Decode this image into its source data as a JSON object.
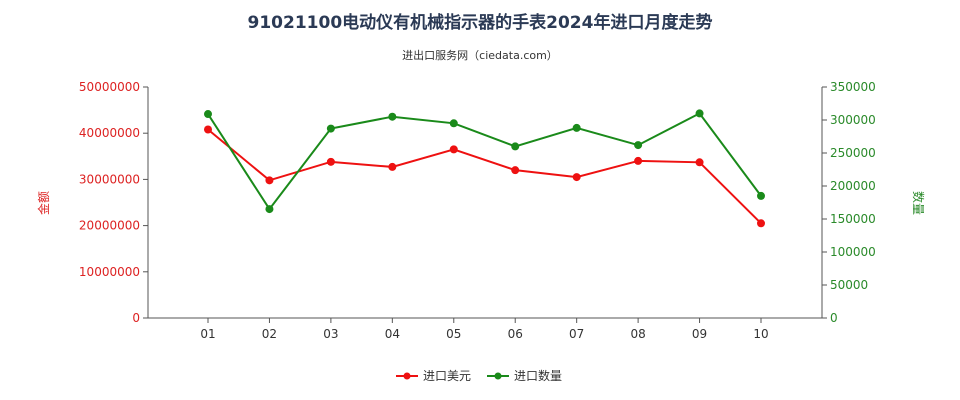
{
  "chart_data": {
    "type": "line",
    "title": "91021100电动仪有机械指示器的手表2024年进口月度走势",
    "subtitle": "进出口服务网（ciedata.com）",
    "categories": [
      "01",
      "02",
      "03",
      "04",
      "05",
      "06",
      "07",
      "08",
      "09",
      "10"
    ],
    "y_left": {
      "label": "金额",
      "ylim": [
        0,
        50000000
      ],
      "ticks": [
        "0",
        "10000000",
        "20000000",
        "30000000",
        "40000000",
        "50000000"
      ],
      "color": "#dd2222"
    },
    "y_right": {
      "label": "数量",
      "ylim": [
        0,
        350000
      ],
      "ticks": [
        "0",
        "50000",
        "100000",
        "150000",
        "200000",
        "250000",
        "300000",
        "350000"
      ],
      "color": "#2a8a2a"
    },
    "series": [
      {
        "name": "进口美元",
        "axis": "left",
        "color": "#ee1111",
        "values": [
          40800000,
          29800000,
          33800000,
          32700000,
          36500000,
          32000000,
          30500000,
          34000000,
          33700000,
          20500000
        ]
      },
      {
        "name": "进口数量",
        "axis": "right",
        "color": "#1a8a1a",
        "values": [
          309000,
          165000,
          287000,
          305000,
          295000,
          260000,
          288000,
          262000,
          310000,
          185000
        ]
      }
    ],
    "grid": false,
    "legend_position": "bottom-center"
  }
}
